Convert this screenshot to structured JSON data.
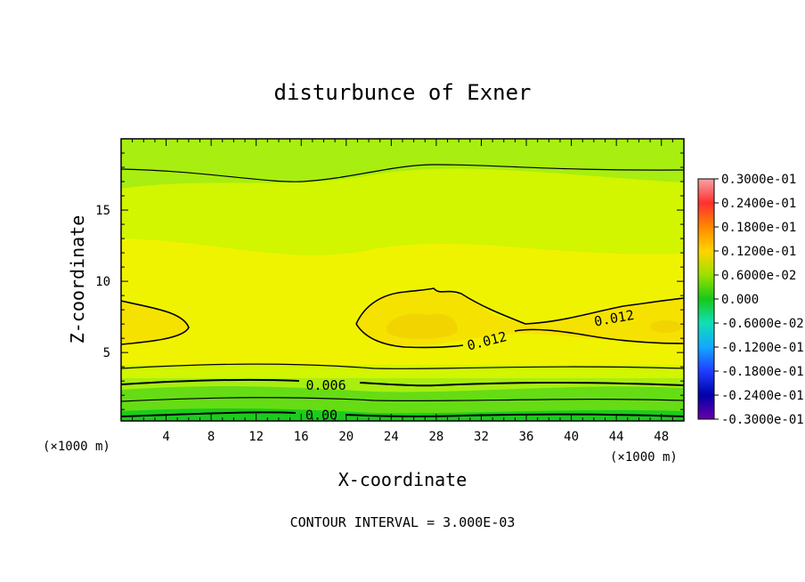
{
  "chart_data": {
    "type": "contour",
    "title": "disturbunce of Exner",
    "xlabel": "X-coordinate",
    "ylabel": "Z-coordinate",
    "x_unit_left": "(×1000 m)",
    "x_unit_right": "(×1000 m)",
    "xlim": [
      0,
      50
    ],
    "ylim": [
      0.2,
      20
    ],
    "x_ticks": [
      4,
      8,
      12,
      16,
      20,
      24,
      28,
      32,
      36,
      40,
      44,
      48
    ],
    "y_ticks": [
      5,
      10,
      15
    ],
    "contour_interval_text": "CONTOUR INTERVAL = 3.000E-03",
    "contour_labels": [
      {
        "text": "0.012",
        "x": 32.5,
        "z": 5.8,
        "angle": -14
      },
      {
        "text": "0.012",
        "x": 43.8,
        "z": 7.4,
        "angle": -10
      },
      {
        "text": "0.006",
        "x": 18.2,
        "z": 2.7,
        "angle": 0
      },
      {
        "text": "0.00",
        "x": 17.8,
        "z": 0.6,
        "angle": 0
      }
    ],
    "colorbar": {
      "labels": [
        "0.3000e-01",
        "0.2400e-01",
        "0.1800e-01",
        "0.1200e-01",
        "0.6000e-02",
        "0.000",
        "-0.6000e-02",
        "-0.1200e-01",
        "-0.1800e-01",
        "-0.2400e-01",
        "-0.3000e-01"
      ],
      "values": [
        0.03,
        0.024,
        0.018,
        0.012,
        0.006,
        0.0,
        -0.006,
        -0.012,
        -0.018,
        -0.024,
        -0.03
      ],
      "colors": [
        "#f7a3a3",
        "#ff3030",
        "#ff8800",
        "#ffd400",
        "#9de000",
        "#18c818",
        "#10dfb6",
        "#11a8ff",
        "#1f3dff",
        "#0000a8",
        "#6a00a8"
      ]
    },
    "field_colors": {
      "band_0_000": "#1ccc1c",
      "band_0_003": "#66dc14",
      "band_0_006": "#a8ee10",
      "band_0_009": "#d2f500",
      "band_0_010": "#f0f300",
      "band_0_012": "#f6e200",
      "band_0_014": "#f2d400"
    }
  }
}
